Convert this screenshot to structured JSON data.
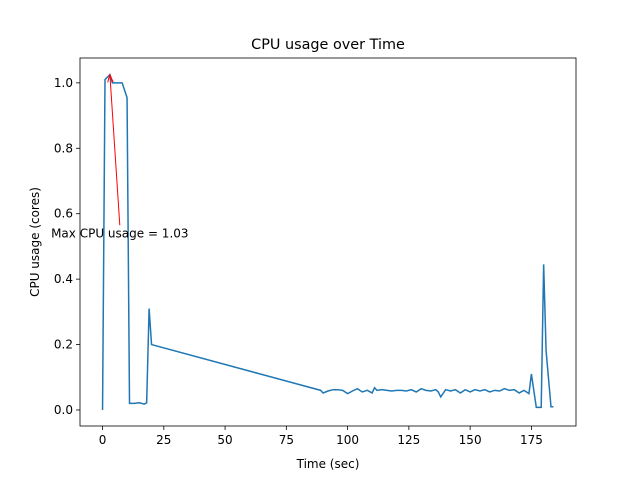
{
  "chart_data": {
    "type": "line",
    "title": "CPU usage over Time",
    "xlabel": "Time (sec)",
    "ylabel": "CPU usage (cores)",
    "x": [
      0,
      1,
      3,
      4,
      6,
      8,
      10,
      11,
      13,
      15,
      17,
      18,
      19,
      20,
      89,
      90,
      92,
      94,
      96,
      98,
      100,
      102,
      104,
      106,
      108,
      110,
      111,
      112,
      114,
      116,
      118,
      120,
      122,
      124,
      126,
      128,
      130,
      132,
      134,
      136,
      137,
      138,
      140,
      142,
      144,
      146,
      148,
      150,
      152,
      154,
      156,
      158,
      160,
      162,
      164,
      166,
      168,
      170,
      172,
      174,
      175,
      177,
      179,
      180,
      181,
      183,
      184
    ],
    "series": [
      {
        "name": "CPU usage",
        "color": "#1f77b4",
        "values": [
          0.0,
          1.01,
          1.025,
          1.0,
          1.0,
          1.0,
          0.955,
          0.02,
          0.02,
          0.022,
          0.018,
          0.022,
          0.31,
          0.2,
          0.06,
          0.052,
          0.058,
          0.062,
          0.062,
          0.06,
          0.05,
          0.058,
          0.065,
          0.055,
          0.06,
          0.052,
          0.068,
          0.06,
          0.062,
          0.06,
          0.058,
          0.06,
          0.06,
          0.058,
          0.062,
          0.055,
          0.065,
          0.06,
          0.058,
          0.062,
          0.055,
          0.04,
          0.062,
          0.058,
          0.062,
          0.052,
          0.062,
          0.055,
          0.062,
          0.058,
          0.062,
          0.055,
          0.06,
          0.058,
          0.065,
          0.06,
          0.062,
          0.052,
          0.06,
          0.05,
          0.11,
          0.008,
          0.008,
          0.445,
          0.18,
          0.01,
          0.01
        ]
      }
    ],
    "xlim": [
      -9.2,
      193.2
    ],
    "ylim": [
      -0.049,
      1.076
    ],
    "xticks": [
      0,
      25,
      50,
      75,
      100,
      125,
      150,
      175
    ],
    "yticks": [
      {
        "value": 0,
        "label": "0.0"
      },
      0.2,
      0.4,
      0.6,
      0.8,
      {
        "value": 1,
        "label": "1.0"
      }
    ],
    "annotation": {
      "text": "Max CPU usage = 1.03",
      "color": "#ff0000",
      "xy": [
        3,
        1.025
      ],
      "xytext": [
        -21,
        0.54
      ]
    }
  }
}
